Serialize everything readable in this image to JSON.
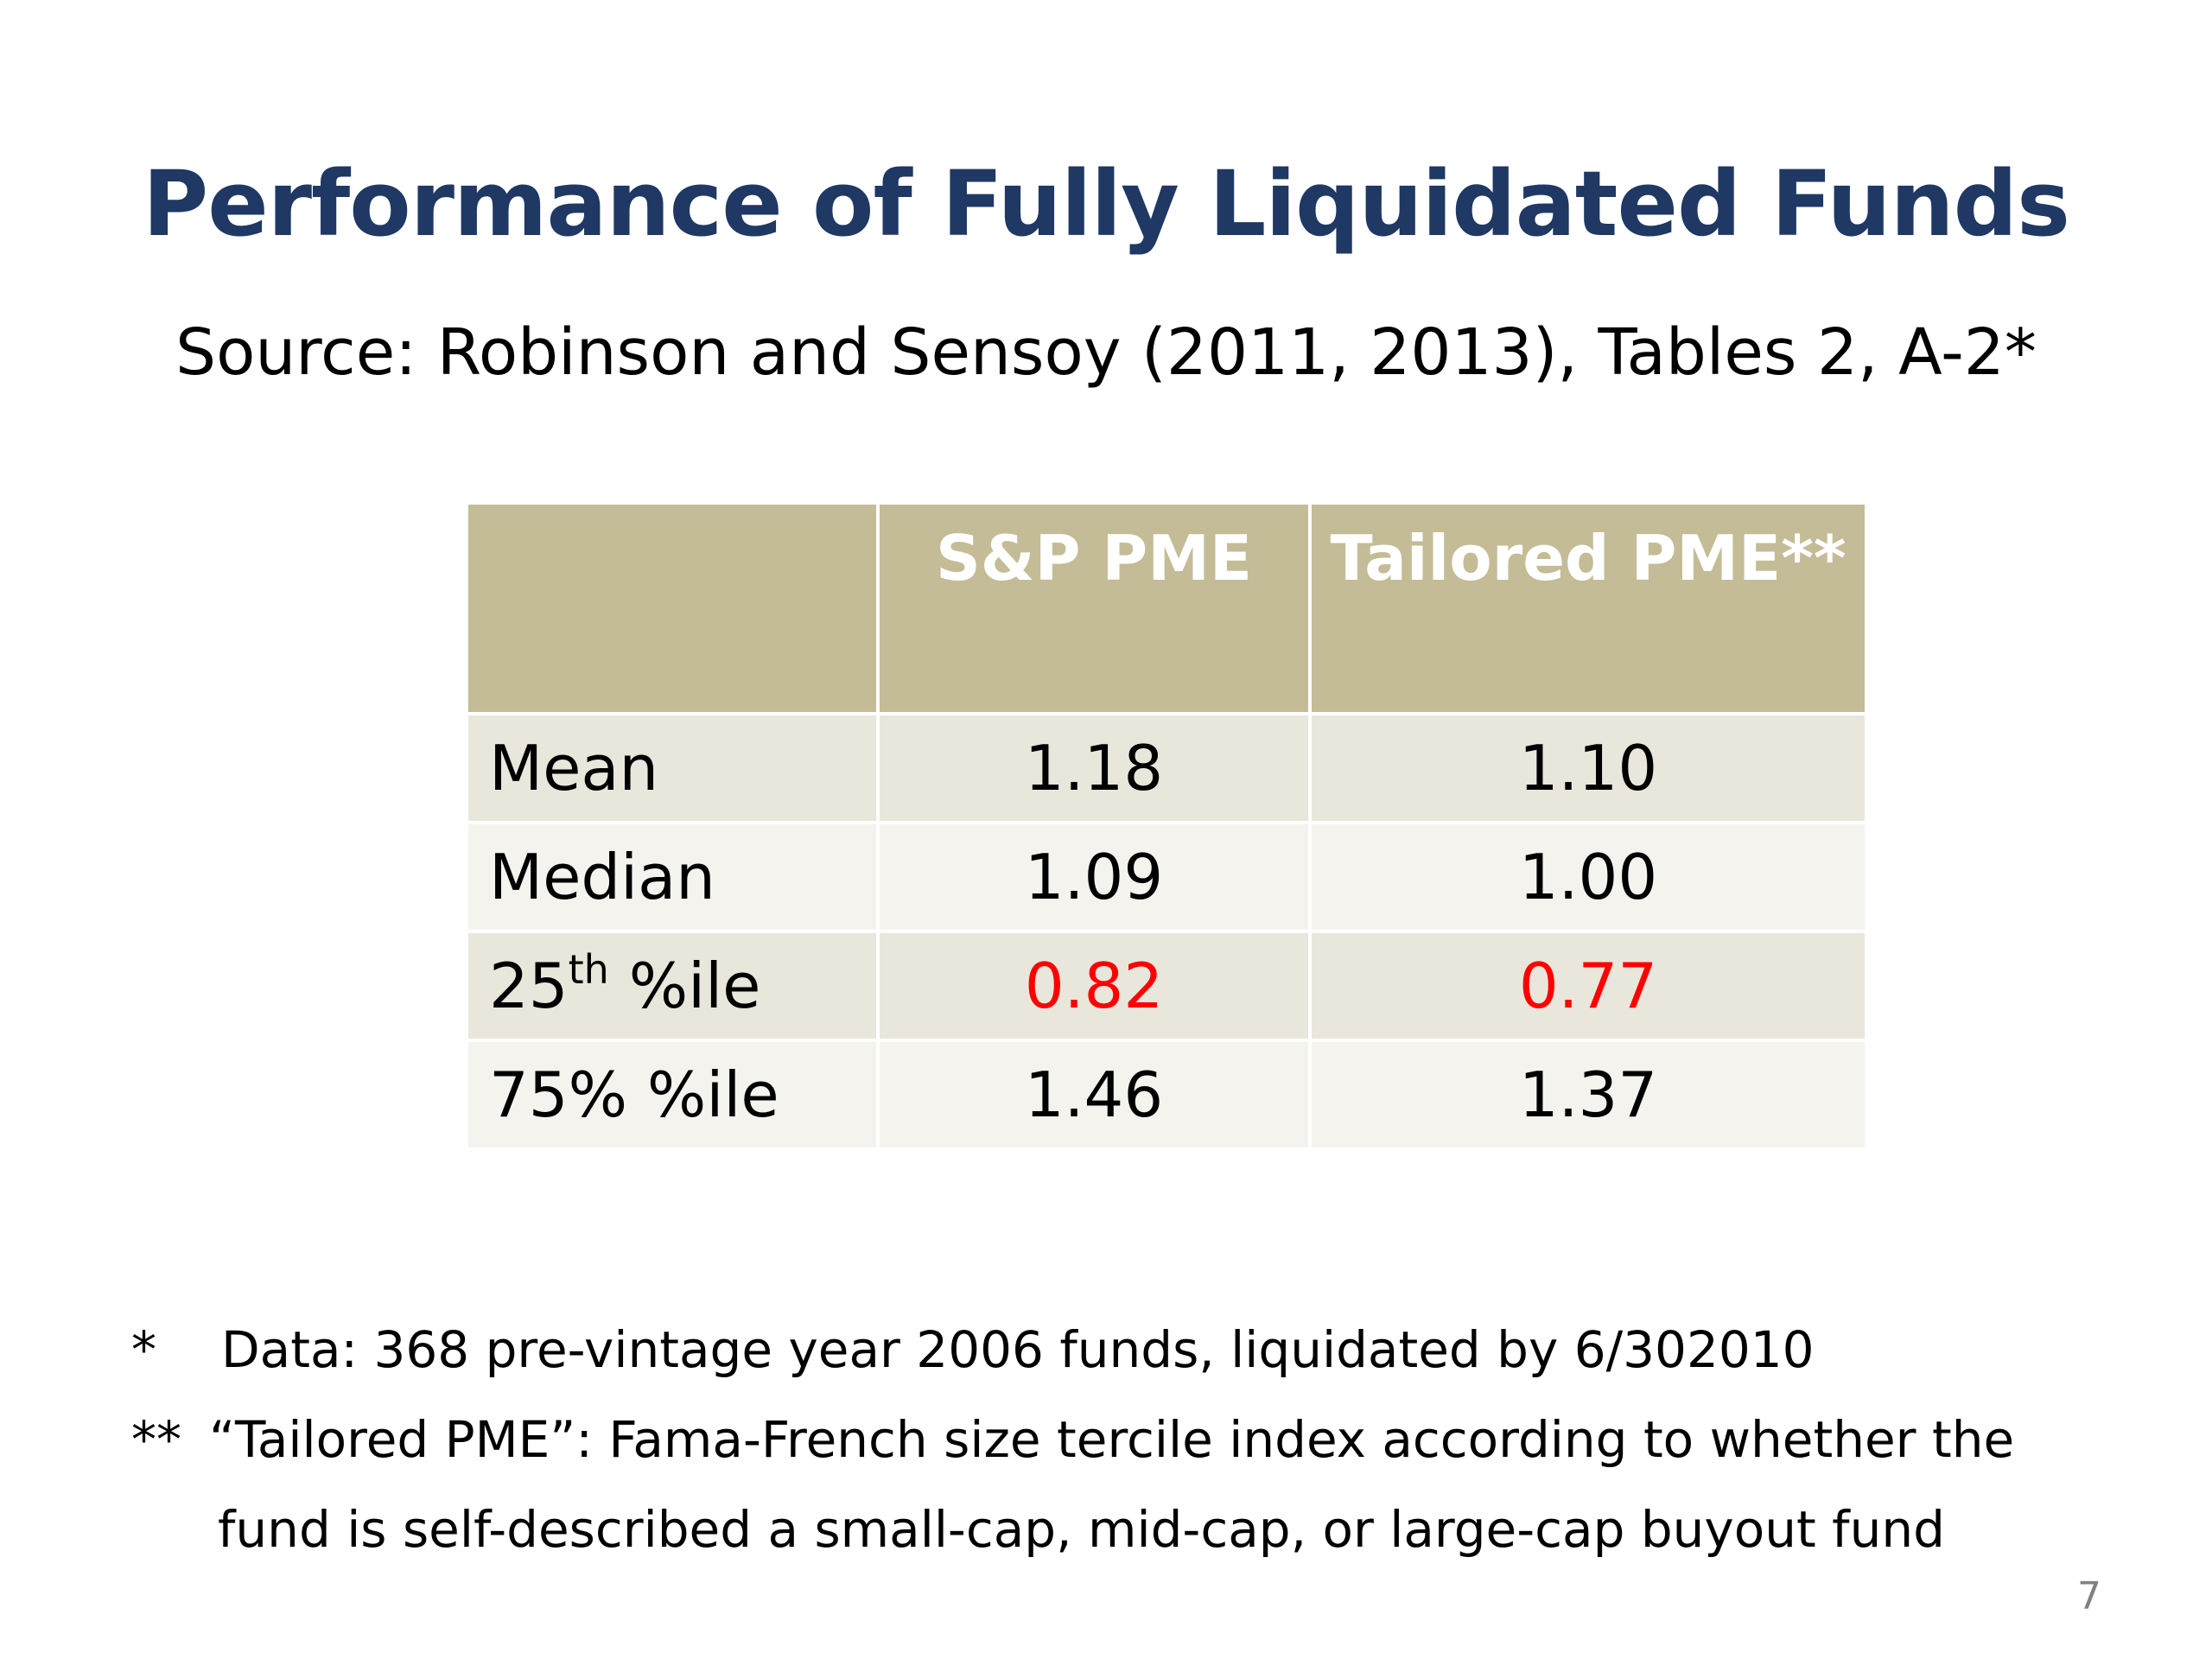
{
  "title": "Performance of Fully Liquidated Funds",
  "subtitle": "Source: Robinson and Sensoy (2011, 2013), Tables 2, A-2*",
  "table": {
    "headers": [
      "",
      "S&P PME",
      "Tailored PME**"
    ],
    "rows": [
      {
        "label": "Mean",
        "sp": "1.18",
        "tailored": "1.10"
      },
      {
        "label": "Median",
        "sp": "1.09",
        "tailored": "1.00"
      },
      {
        "label_num": "25",
        "label_sup": "th",
        "label_rest": " %ile",
        "sp": "0.82",
        "tailored": "0.77"
      },
      {
        "label": "75% %ile",
        "sp": "1.46",
        "tailored": "1.37"
      }
    ],
    "highlight_color": "#ff0000",
    "header_bg": "#c4bc96"
  },
  "notes": [
    {
      "marker": "*",
      "text": "Data: 368 pre-vintage year 2006 funds, liquidated by 6/302010"
    },
    {
      "marker": "**",
      "text": "“Tailored PME”: Fama-French size tercile index according to whether the"
    },
    {
      "marker": "",
      "text": "fund is self-described a small-cap, mid-cap, or large-cap buyout fund"
    }
  ],
  "page_number": "7",
  "colors": {
    "title": "#1f3864",
    "row_odd": "#e9e6dc",
    "row_even": "#f4f3ee"
  }
}
